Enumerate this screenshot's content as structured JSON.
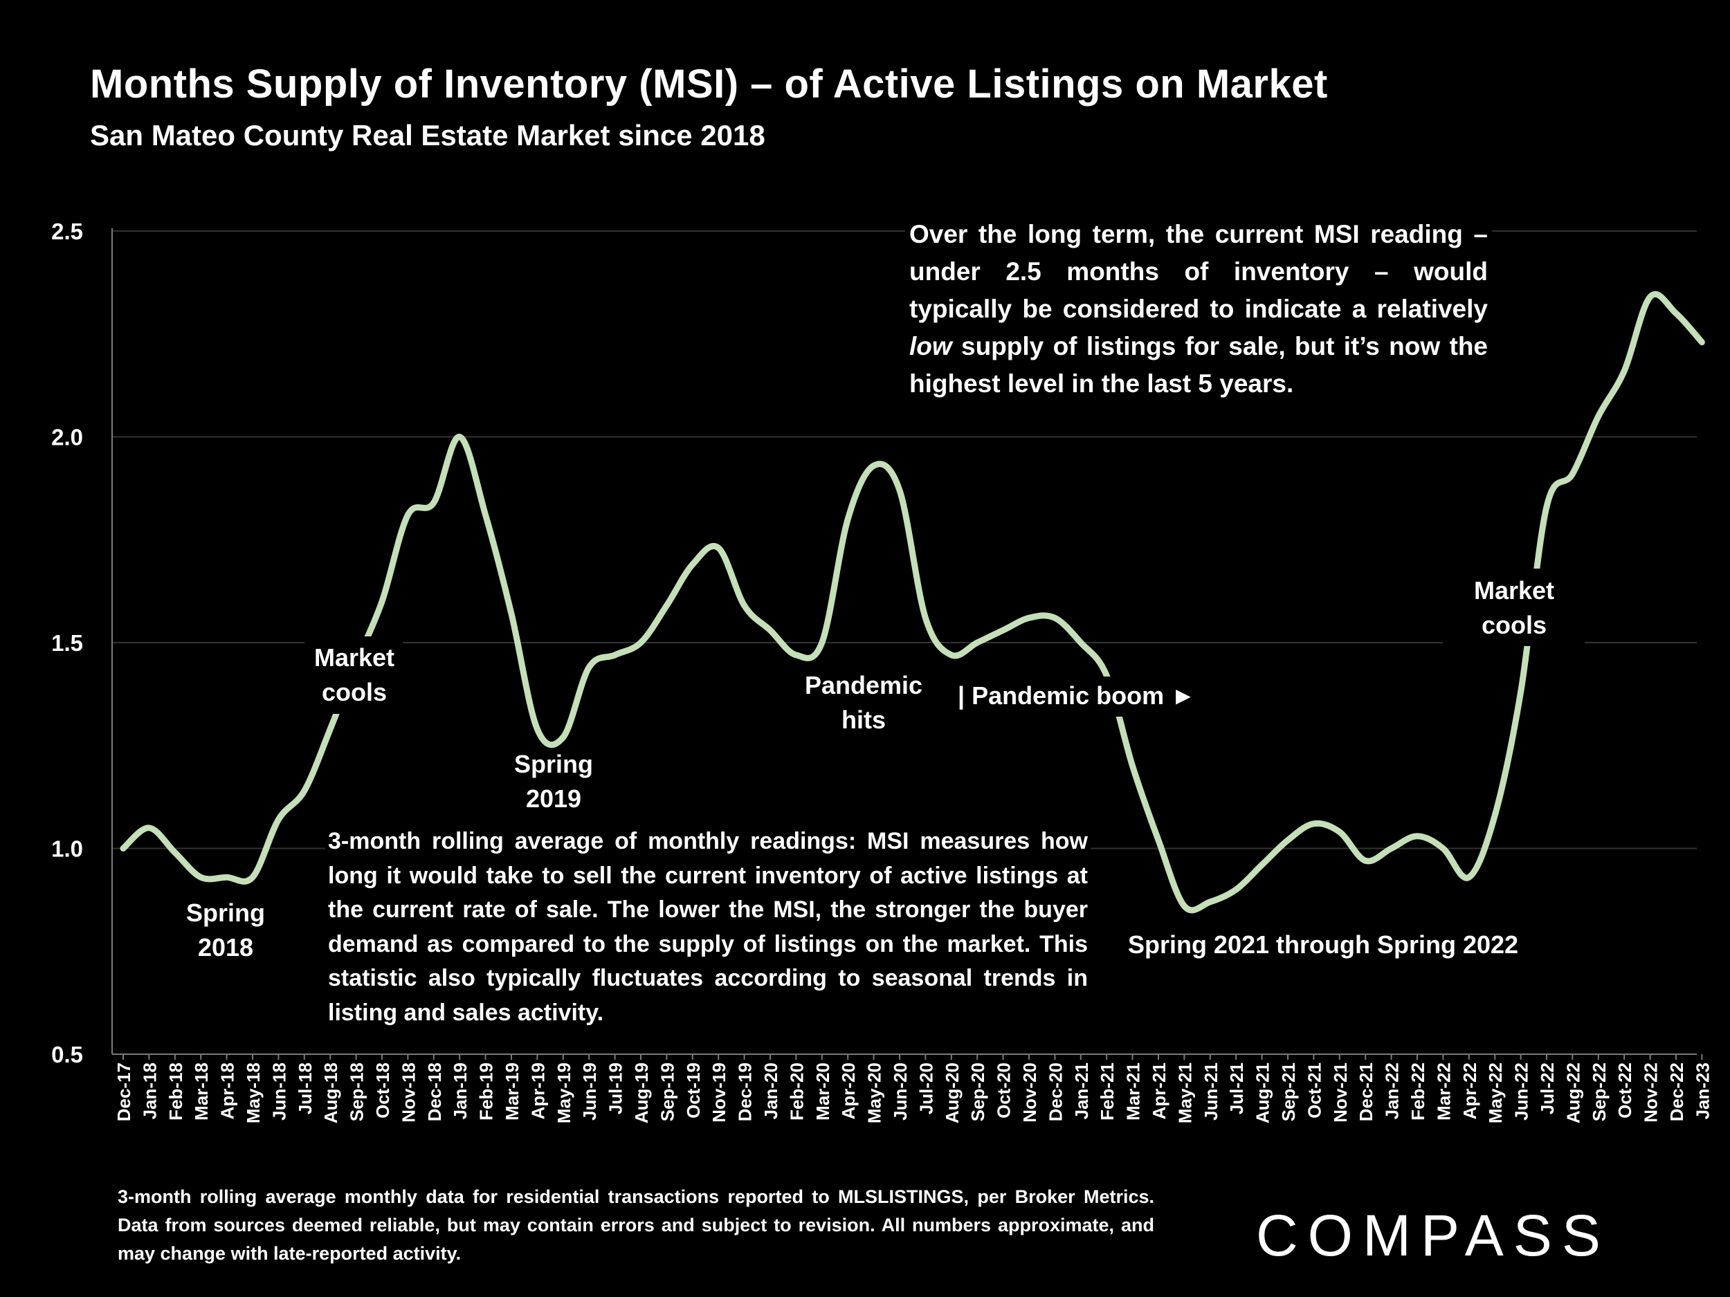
{
  "header": {
    "title": "Months Supply of Inventory (MSI) – of Active Listings on Market",
    "subtitle": "San Mateo County Real Estate Market since 2018"
  },
  "colors": {
    "background": "#000000",
    "line": "#c5dfb8",
    "grid": "#333333",
    "text": "#ffffff"
  },
  "chart_data": {
    "type": "line",
    "title": "Months Supply of Inventory (MSI) – of Active Listings on Market",
    "subtitle": "San Mateo County Real Estate Market since 2018",
    "xlabel": "",
    "ylabel": "",
    "ylim": [
      0.5,
      2.5
    ],
    "yticks": [
      "0.5",
      "1.0",
      "1.5",
      "2.0",
      "2.5"
    ],
    "grid": "horizontal",
    "legend": "none",
    "categories": [
      "Dec-17",
      "Jan-18",
      "Feb-18",
      "Mar-18",
      "Apr-18",
      "May-18",
      "Jun-18",
      "Jul-18",
      "Aug-18",
      "Sep-18",
      "Oct-18",
      "Nov-18",
      "Dec-18",
      "Jan-19",
      "Feb-19",
      "Mar-19",
      "Apr-19",
      "May-19",
      "Jun-19",
      "Jul-19",
      "Aug-19",
      "Sep-19",
      "Oct-19",
      "Nov-19",
      "Dec-19",
      "Jan-20",
      "Feb-20",
      "Mar-20",
      "Apr-20",
      "May-20",
      "Jun-20",
      "Jul-20",
      "Aug-20",
      "Sep-20",
      "Oct-20",
      "Nov-20",
      "Dec-20",
      "Jan-21",
      "Feb-21",
      "Mar-21",
      "Apr-21",
      "May-21",
      "Jun-21",
      "Jul-21",
      "Aug-21",
      "Sep-21",
      "Oct-21",
      "Nov-21",
      "Dec-21",
      "Jan-22",
      "Feb-22",
      "Mar-22",
      "Apr-22",
      "May-22",
      "Jun-22",
      "Jul-22",
      "Aug-22",
      "Sep-22",
      "Oct-22",
      "Nov-22",
      "Dec-22",
      "Jan-23"
    ],
    "series": [
      {
        "values": [
          1.0,
          1.05,
          0.99,
          0.93,
          0.93,
          0.93,
          1.07,
          1.14,
          1.29,
          1.45,
          1.6,
          1.81,
          1.84,
          2.0,
          1.81,
          1.57,
          1.29,
          1.27,
          1.44,
          1.47,
          1.5,
          1.59,
          1.69,
          1.73,
          1.59,
          1.53,
          1.47,
          1.5,
          1.8,
          1.93,
          1.87,
          1.56,
          1.47,
          1.5,
          1.53,
          1.56,
          1.56,
          1.5,
          1.42,
          1.2,
          1.02,
          0.86,
          0.87,
          0.9,
          0.96,
          1.02,
          1.06,
          1.04,
          0.97,
          1.0,
          1.03,
          1.0,
          0.93,
          1.08,
          1.38,
          1.83,
          1.91,
          2.05,
          2.16,
          2.34,
          2.3,
          2.23
        ]
      }
    ],
    "annotations": {
      "spring_2018": [
        "Spring",
        "2018"
      ],
      "market_cools_1": [
        "Market",
        "cools"
      ],
      "spring_2019": [
        "Spring",
        "2019"
      ],
      "pandemic_hits": [
        "Pandemic",
        "hits"
      ],
      "pandemic_boom": "| Pandemic boom ►",
      "spring_2021_2022": "Spring 2021 through Spring 2022",
      "market_cools_2": [
        "Market",
        "cools"
      ]
    }
  },
  "notes": {
    "top": "Over the long term, the current MSI reading – under 2.5 months of inventory – would typically be considered to indicate a relatively ",
    "top_em": "low",
    "top_rest": " supply of listings for sale, but it’s now the highest level in the last 5 years.",
    "middle": "3-month rolling average of monthly readings: MSI measures how long it would take to sell the current inventory of active listings at the current rate of sale. The lower the MSI, the stronger the buyer demand as compared to the supply of listings on the market. This statistic also typically fluctuates according to seasonal trends in listing and sales activity."
  },
  "footer": {
    "source": "3-month rolling average monthly data for residential transactions reported to MLSLISTINGS, per Broker Metrics. Data from sources deemed reliable, but may contain errors and subject to revision. All numbers approximate, and may change with late-reported activity.",
    "logo": "COMPASS"
  }
}
